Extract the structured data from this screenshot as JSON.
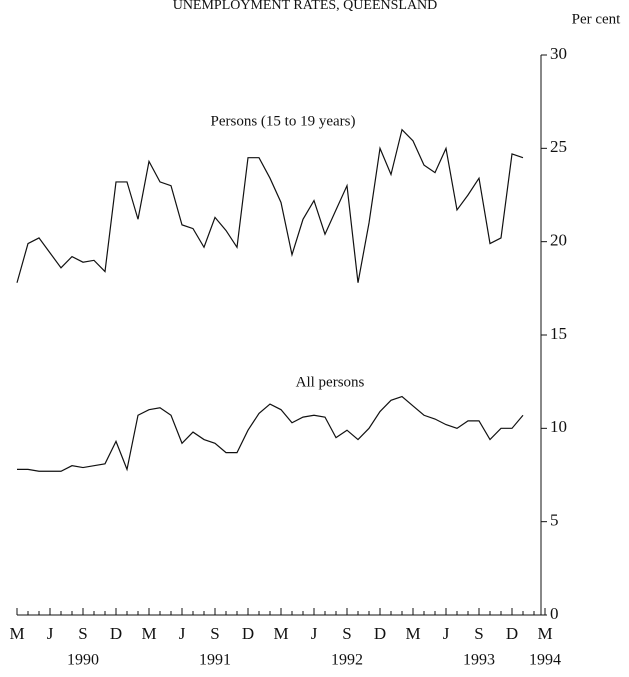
{
  "chart_data": {
    "type": "line",
    "title": "UNEMPLOYMENT RATES, QUEENSLAND",
    "ylabel": "Per cent",
    "categories": [
      "M",
      null,
      null,
      "J",
      null,
      null,
      "S",
      null,
      null,
      "D",
      null,
      null,
      "M",
      null,
      null,
      "J",
      null,
      null,
      "S",
      null,
      null,
      "D",
      null,
      null,
      "M",
      null,
      null,
      "J",
      null,
      null,
      "S",
      null,
      null,
      "D",
      null,
      null,
      "M",
      null,
      null,
      "J",
      null,
      null,
      "S",
      null,
      null,
      "D",
      null,
      null,
      "M"
    ],
    "years": [
      "1990",
      "1991",
      "1992",
      "1993",
      "1994"
    ],
    "series": [
      {
        "name": "Persons (15 to 19 years)",
        "color": "#111111",
        "values": [
          17.8,
          19.9,
          20.2,
          19.4,
          18.6,
          19.2,
          18.9,
          19.0,
          18.4,
          23.2,
          23.2,
          21.2,
          24.3,
          23.2,
          23.0,
          20.9,
          20.7,
          19.7,
          21.3,
          20.6,
          19.7,
          24.5,
          24.5,
          23.4,
          22.1,
          19.3,
          21.2,
          22.2,
          20.4,
          21.7,
          23.0,
          17.8,
          21.0,
          25.0,
          23.6,
          26.0,
          25.4,
          24.1,
          23.7,
          25.0,
          21.7,
          22.5,
          23.4,
          19.9,
          20.2,
          24.7,
          24.5,
          null,
          null
        ]
      },
      {
        "name": "All persons",
        "color": "#111111",
        "values": [
          7.8,
          7.8,
          7.7,
          7.7,
          7.7,
          8.0,
          7.9,
          8.0,
          8.1,
          9.3,
          7.8,
          10.7,
          11.0,
          11.1,
          10.7,
          9.2,
          9.8,
          9.4,
          9.2,
          8.7,
          8.7,
          9.9,
          10.8,
          11.3,
          11.0,
          10.3,
          10.6,
          10.7,
          10.6,
          9.5,
          9.9,
          9.4,
          10.0,
          10.9,
          11.5,
          11.7,
          11.2,
          10.7,
          10.5,
          10.2,
          10.0,
          10.4,
          10.4,
          9.4,
          10.0,
          10.0,
          10.7,
          null,
          null
        ]
      }
    ],
    "ylim": [
      0,
      30
    ],
    "yticks": [
      0,
      5,
      10,
      15,
      20,
      25,
      30
    ],
    "grid": false
  }
}
